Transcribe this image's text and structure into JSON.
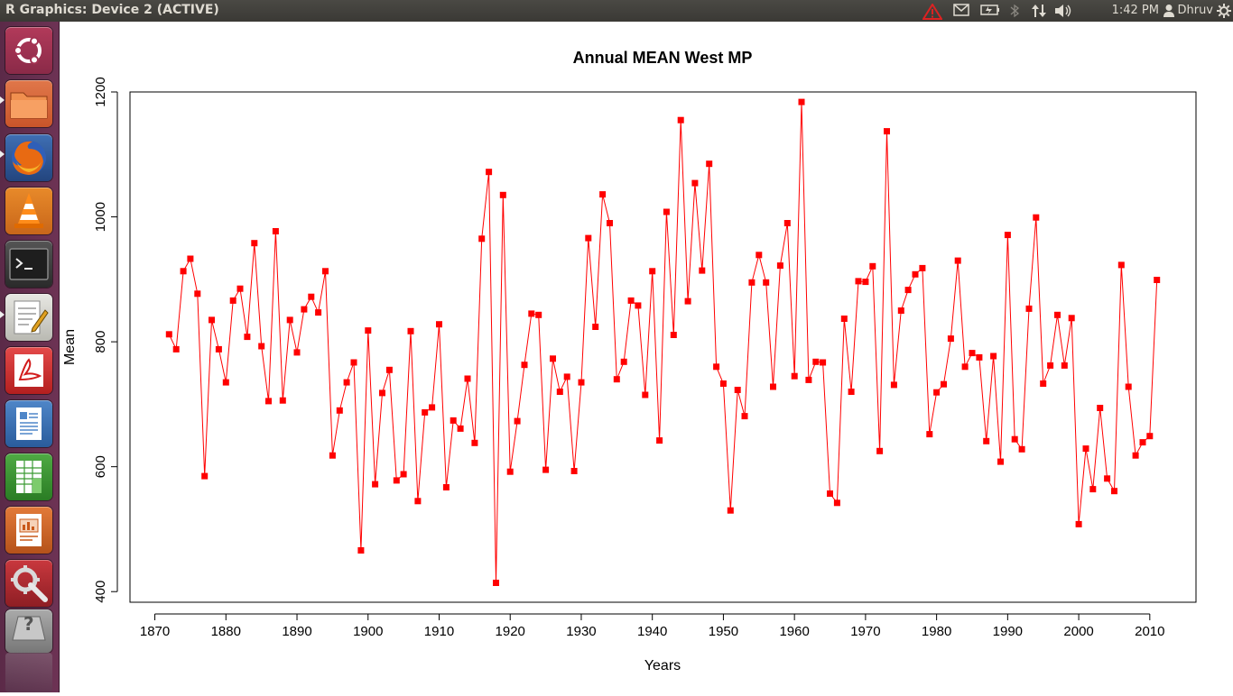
{
  "window": {
    "title": "R Graphics: Device 2 (ACTIVE)"
  },
  "tray": {
    "time": "1:42 PM",
    "user": "Dhruv",
    "icons": [
      "warning-icon",
      "mail-icon",
      "battery-icon",
      "bluetooth-icon",
      "network-icon",
      "volume-icon",
      "user-icon",
      "gear-icon"
    ]
  },
  "launcher": {
    "items": [
      {
        "name": "dash-home",
        "icon": "ubuntu-logo-icon"
      },
      {
        "name": "files",
        "icon": "folder-icon"
      },
      {
        "name": "firefox",
        "icon": "firefox-icon"
      },
      {
        "name": "vlc",
        "icon": "vlc-cone-icon"
      },
      {
        "name": "terminal",
        "icon": "terminal-icon"
      },
      {
        "name": "text-editor",
        "icon": "text-editor-icon"
      },
      {
        "name": "pdf-viewer",
        "icon": "pdf-icon"
      },
      {
        "name": "libreoffice-writer",
        "icon": "writer-icon"
      },
      {
        "name": "libreoffice-calc",
        "icon": "calc-icon"
      },
      {
        "name": "libreoffice-impress",
        "icon": "impress-icon"
      },
      {
        "name": "system-settings",
        "icon": "settings-icon"
      },
      {
        "name": "unknown-app",
        "icon": "question-icon"
      }
    ],
    "unknown_app_glyph": "?",
    "terminal_glyph": ">_"
  },
  "chart_data": {
    "type": "line",
    "title": "Annual MEAN West MP",
    "xlabel": "Years",
    "ylabel": "Mean",
    "xlim": [
      1866.5,
      2016.5
    ],
    "ylim": [
      383,
      1200
    ],
    "xticks": [
      1870,
      1880,
      1890,
      1900,
      1910,
      1920,
      1930,
      1940,
      1950,
      1960,
      1970,
      1980,
      1990,
      2000,
      2010
    ],
    "yticks": [
      400,
      600,
      800,
      1000,
      1200
    ],
    "grid": false,
    "legend": "none",
    "colors": {
      "series": "#ff0000",
      "marker": "#ff0000",
      "axis": "#000000"
    },
    "series": [
      {
        "x": [
          1872,
          1873,
          1874,
          1875,
          1876,
          1877,
          1878,
          1879,
          1880,
          1881,
          1882,
          1883,
          1884,
          1885,
          1886,
          1887,
          1888,
          1889,
          1890,
          1891,
          1892,
          1893,
          1894,
          1895,
          1896,
          1897,
          1898,
          1899,
          1900,
          1901,
          1902,
          1903,
          1904,
          1905,
          1906,
          1907,
          1908,
          1909,
          1910,
          1911,
          1912,
          1913,
          1914,
          1915,
          1916,
          1917,
          1918,
          1919,
          1920,
          1921,
          1922,
          1923,
          1924,
          1925,
          1926,
          1927,
          1928,
          1929,
          1930,
          1931,
          1932,
          1933,
          1934,
          1935,
          1936,
          1937,
          1938,
          1939,
          1940,
          1941,
          1942,
          1943,
          1944,
          1945,
          1946,
          1947,
          1948,
          1949,
          1950,
          1951,
          1952,
          1953,
          1954,
          1955,
          1956,
          1957,
          1958,
          1959,
          1960,
          1961,
          1962,
          1963,
          1964,
          1965,
          1966,
          1967,
          1968,
          1969,
          1970,
          1971,
          1972,
          1973,
          1974,
          1975,
          1976,
          1977,
          1978,
          1979,
          1980,
          1981,
          1982,
          1983,
          1984,
          1985,
          1986,
          1987,
          1988,
          1989,
          1990,
          1991,
          1992,
          1993,
          1994,
          1995,
          1996,
          1997,
          1998,
          1999,
          2000,
          2001,
          2002,
          2003,
          2004,
          2005,
          2006,
          2007,
          2008,
          2009,
          2010,
          2011
        ],
        "values": [
          812,
          788,
          913,
          933,
          877,
          585,
          835,
          788,
          735,
          866,
          885,
          808,
          958,
          793,
          705,
          977,
          706,
          835,
          783,
          852,
          872,
          847,
          913,
          618,
          690,
          735,
          767,
          466,
          818,
          572,
          718,
          755,
          578,
          588,
          817,
          545,
          687,
          695,
          828,
          567,
          674,
          661,
          741,
          638,
          965,
          1072,
          414,
          1035,
          592,
          673,
          763,
          845,
          843,
          595,
          773,
          720,
          744,
          593,
          735,
          966,
          824,
          1036,
          990,
          740,
          768,
          866,
          858,
          715,
          913,
          642,
          1008,
          811,
          1155,
          865,
          1054,
          914,
          1085,
          760,
          733,
          530,
          723,
          681,
          895,
          939,
          895,
          728,
          922,
          990,
          745,
          1184,
          739,
          768,
          767,
          557,
          542,
          837,
          720,
          897,
          896,
          921,
          625,
          1137,
          731,
          850,
          883,
          908,
          918,
          652,
          719,
          732,
          805,
          930,
          760,
          782,
          775,
          641,
          777,
          608,
          971,
          644,
          628,
          853,
          999,
          733,
          762,
          843,
          762,
          838,
          508,
          629,
          564,
          694,
          581,
          561,
          923,
          728,
          618,
          639,
          649,
          899
        ]
      }
    ]
  }
}
